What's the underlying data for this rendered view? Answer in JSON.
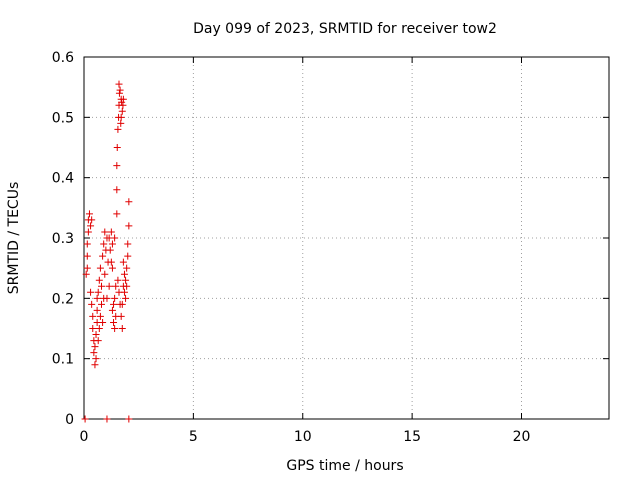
{
  "chart_data": {
    "type": "scatter",
    "title": "Day 099 of 2023, SRMTID for receiver tow2",
    "xlabel": "GPS time / hours",
    "ylabel": "SRMTID / TECUs",
    "xlim": [
      0,
      24
    ],
    "ylim": [
      0,
      0.6
    ],
    "xticks": [
      0,
      5,
      10,
      15,
      20
    ],
    "yticks": [
      0,
      0.1,
      0.2,
      0.3,
      0.4,
      0.5,
      0.6
    ],
    "xtick_labels": [
      "0",
      "5",
      "10",
      "15",
      "20"
    ],
    "ytick_labels": [
      "0",
      "0.1",
      "0.2",
      "0.3",
      "0.4",
      "0.5",
      "0.6"
    ],
    "grid": true,
    "marker": "+",
    "color": "#e00000",
    "series": [
      {
        "name": "SRMTID",
        "points": [
          [
            0.05,
            0.0
          ],
          [
            1.05,
            0.0
          ],
          [
            2.05,
            0.0
          ],
          [
            0.15,
            0.25
          ],
          [
            0.15,
            0.27
          ],
          [
            0.15,
            0.29
          ],
          [
            0.2,
            0.31
          ],
          [
            0.2,
            0.33
          ],
          [
            0.25,
            0.34
          ],
          [
            0.3,
            0.32
          ],
          [
            0.35,
            0.33
          ],
          [
            0.1,
            0.24
          ],
          [
            0.3,
            0.21
          ],
          [
            0.35,
            0.19
          ],
          [
            0.4,
            0.17
          ],
          [
            0.4,
            0.15
          ],
          [
            0.45,
            0.13
          ],
          [
            0.45,
            0.11
          ],
          [
            0.5,
            0.09
          ],
          [
            0.5,
            0.12
          ],
          [
            0.55,
            0.1
          ],
          [
            0.55,
            0.14
          ],
          [
            0.6,
            0.16
          ],
          [
            0.6,
            0.18
          ],
          [
            0.6,
            0.2
          ],
          [
            0.65,
            0.13
          ],
          [
            0.65,
            0.21
          ],
          [
            0.7,
            0.15
          ],
          [
            0.7,
            0.23
          ],
          [
            0.75,
            0.17
          ],
          [
            0.75,
            0.25
          ],
          [
            0.8,
            0.19
          ],
          [
            0.8,
            0.22
          ],
          [
            0.85,
            0.16
          ],
          [
            0.85,
            0.27
          ],
          [
            0.9,
            0.2
          ],
          [
            0.9,
            0.29
          ],
          [
            0.95,
            0.31
          ],
          [
            0.95,
            0.24
          ],
          [
            1.0,
            0.28
          ],
          [
            1.05,
            0.3
          ],
          [
            1.05,
            0.2
          ],
          [
            1.1,
            0.26
          ],
          [
            1.15,
            0.3
          ],
          [
            1.15,
            0.22
          ],
          [
            1.2,
            0.28
          ],
          [
            1.25,
            0.31
          ],
          [
            1.25,
            0.26
          ],
          [
            1.3,
            0.25
          ],
          [
            1.3,
            0.29
          ],
          [
            1.35,
            0.19
          ],
          [
            1.35,
            0.16
          ],
          [
            1.4,
            0.15
          ],
          [
            1.4,
            0.2
          ],
          [
            1.45,
            0.17
          ],
          [
            1.45,
            0.22
          ],
          [
            1.3,
            0.18
          ],
          [
            1.4,
            0.3
          ],
          [
            1.5,
            0.34
          ],
          [
            1.5,
            0.38
          ],
          [
            1.5,
            0.42
          ],
          [
            1.52,
            0.45
          ],
          [
            1.55,
            0.48
          ],
          [
            1.58,
            0.5
          ],
          [
            1.6,
            0.52
          ],
          [
            1.62,
            0.54
          ],
          [
            1.6,
            0.555
          ],
          [
            1.65,
            0.545
          ],
          [
            1.7,
            0.53
          ],
          [
            1.7,
            0.5
          ],
          [
            1.72,
            0.525
          ],
          [
            1.75,
            0.51
          ],
          [
            1.78,
            0.52
          ],
          [
            1.8,
            0.53
          ],
          [
            1.68,
            0.49
          ],
          [
            1.55,
            0.23
          ],
          [
            1.6,
            0.21
          ],
          [
            1.65,
            0.19
          ],
          [
            1.7,
            0.17
          ],
          [
            1.75,
            0.15
          ],
          [
            1.8,
            0.22
          ],
          [
            1.85,
            0.24
          ],
          [
            1.85,
            0.21
          ],
          [
            1.9,
            0.23
          ],
          [
            1.9,
            0.2
          ],
          [
            1.95,
            0.22
          ],
          [
            1.95,
            0.25
          ],
          [
            2.0,
            0.27
          ],
          [
            2.0,
            0.29
          ],
          [
            2.05,
            0.32
          ],
          [
            2.05,
            0.36
          ],
          [
            1.8,
            0.26
          ],
          [
            1.75,
            0.19
          ]
        ]
      }
    ]
  }
}
